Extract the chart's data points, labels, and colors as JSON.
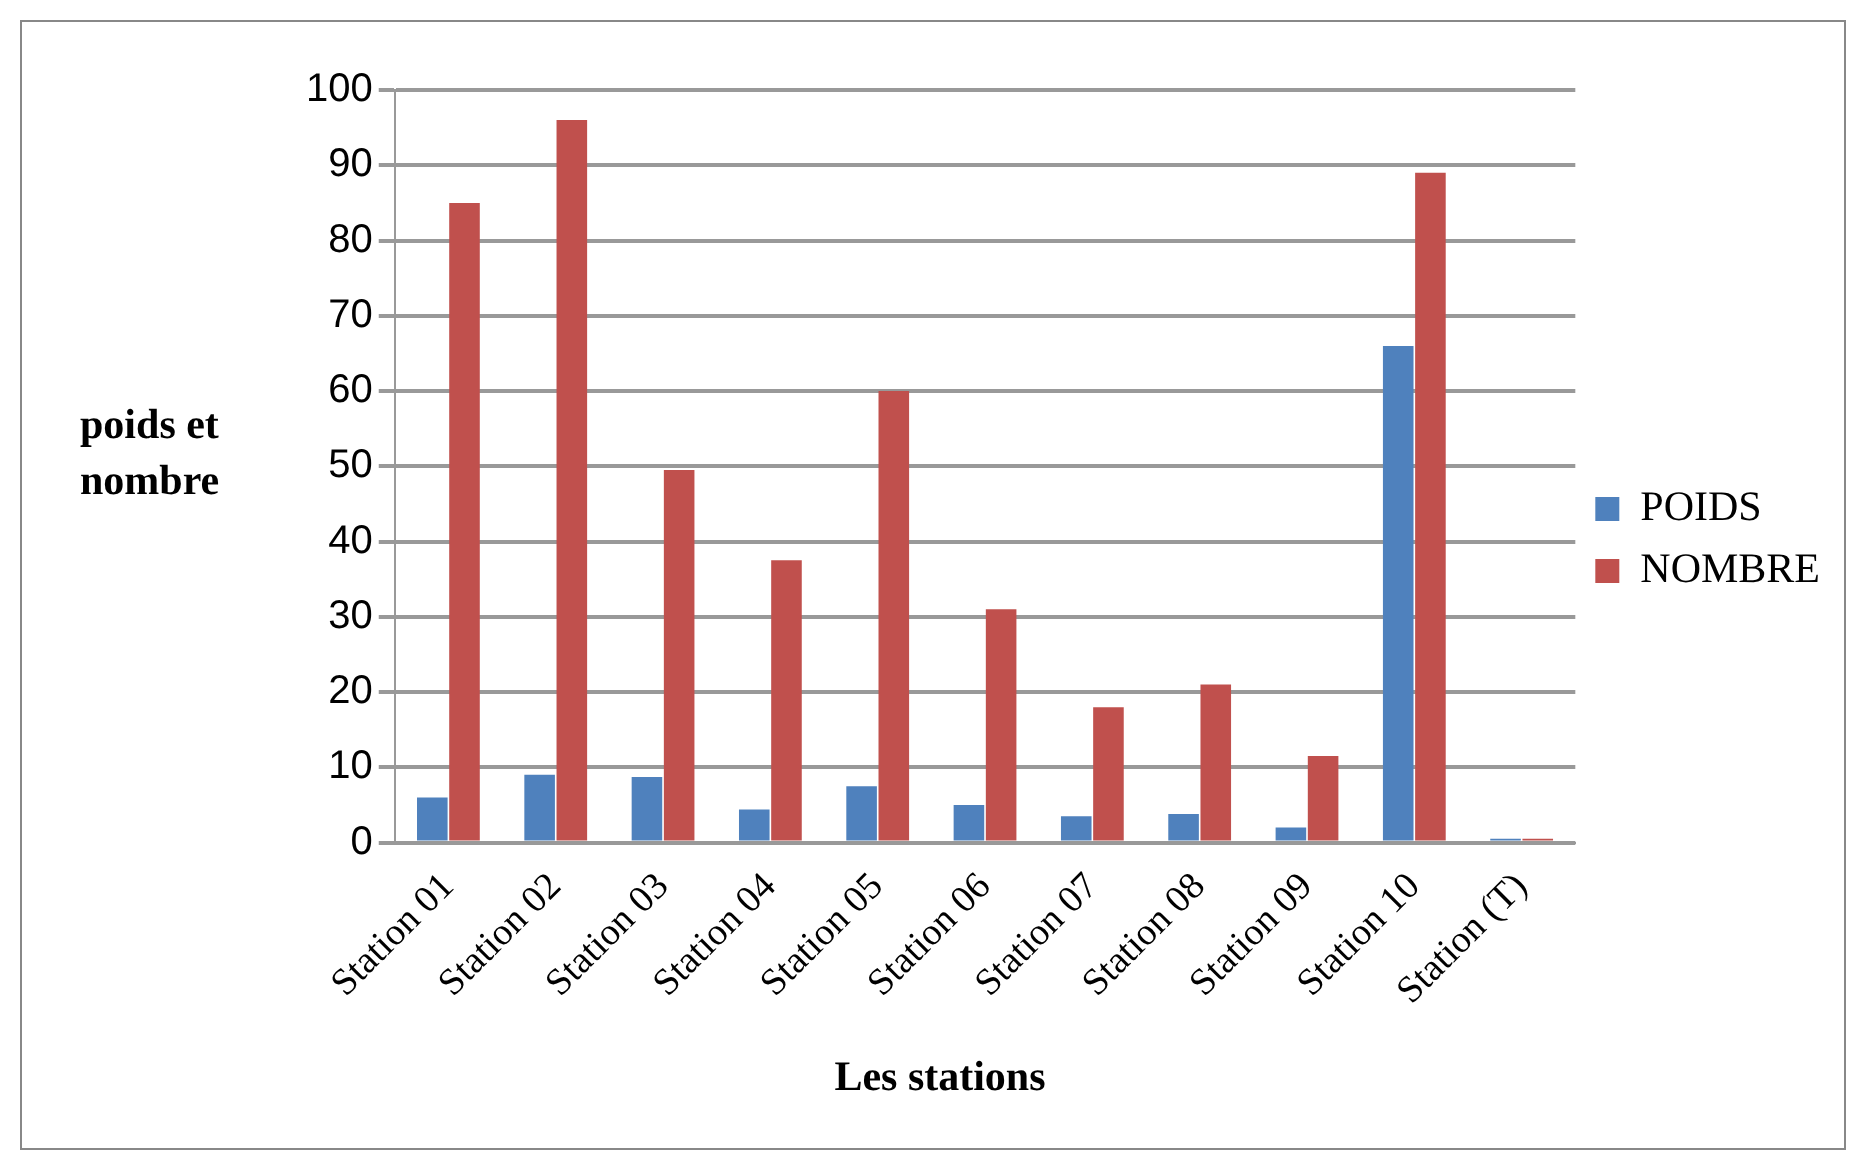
{
  "chart_data": {
    "type": "bar",
    "xlabel": "Les stations",
    "ylabel": "poids et nombre",
    "categories": [
      "Station 01",
      "Station 02",
      "Station 03",
      "Station 04",
      "Station 05",
      "Station 06",
      "Station 07",
      "Station 08",
      "Station 09",
      "Station 10",
      "Station (T)"
    ],
    "series": [
      {
        "name": "POIDS",
        "color": "#4f81bd",
        "values": [
          6,
          9,
          8.7,
          4.4,
          7.5,
          5,
          3.5,
          3.8,
          2,
          66,
          0.5
        ]
      },
      {
        "name": "NOMBRE",
        "color": "#c0504d",
        "values": [
          85,
          96,
          49.5,
          37.5,
          60,
          31,
          18,
          21,
          11.5,
          89,
          0.5
        ]
      }
    ],
    "ylim": [
      0,
      100
    ],
    "yticks": [
      0,
      10,
      20,
      30,
      40,
      50,
      60,
      70,
      80,
      90,
      100
    ],
    "grid": "y",
    "legend": "right"
  }
}
